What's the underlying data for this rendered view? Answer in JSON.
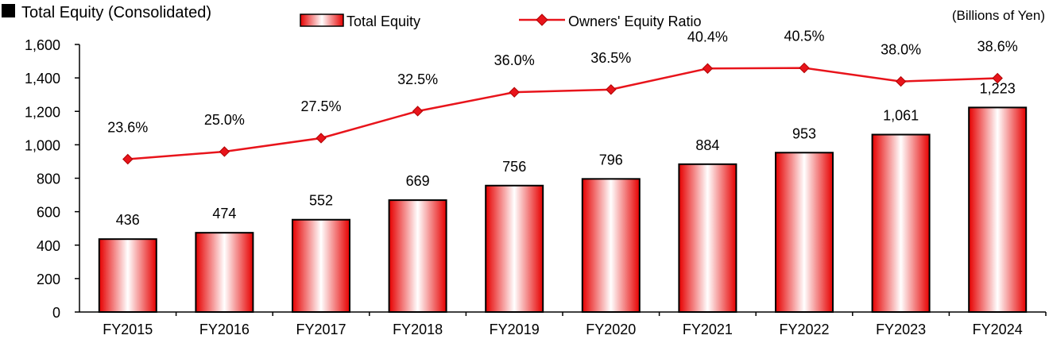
{
  "chart_data": {
    "title": "Total Equity (Consolidated)",
    "unit_note": "(Billions of Yen)",
    "type": "bar",
    "categories": [
      "FY2015",
      "FY2016",
      "FY2017",
      "FY2018",
      "FY2019",
      "FY2020",
      "FY2021",
      "FY2022",
      "FY2023",
      "FY2024"
    ],
    "series": [
      {
        "name": "Total Equity",
        "type": "bar",
        "axis": "left",
        "values": [
          436,
          474,
          552,
          669,
          756,
          796,
          884,
          953,
          1061,
          1223
        ],
        "labels": [
          "436",
          "474",
          "552",
          "669",
          "756",
          "796",
          "884",
          "953",
          "1,061",
          "1,223"
        ],
        "color": "#e00000"
      },
      {
        "name": "Owners' Equity Ratio",
        "type": "line",
        "axis": "secondary",
        "values": [
          23.6,
          25.0,
          27.5,
          32.5,
          36.0,
          36.5,
          40.4,
          40.5,
          38.0,
          38.6
        ],
        "labels": [
          "23.6%",
          "25.0%",
          "27.5%",
          "32.5%",
          "36.0%",
          "36.5%",
          "40.4%",
          "40.5%",
          "38.0%",
          "38.6%"
        ],
        "color": "#e8141b"
      }
    ],
    "y_axis": {
      "ylim": [
        0,
        1600
      ],
      "ticks": [
        0,
        200,
        400,
        600,
        800,
        1000,
        1200,
        1400,
        1600
      ],
      "tick_labels": [
        "0",
        "200",
        "400",
        "600",
        "800",
        "1,000",
        "1,200",
        "1,400",
        "1,600"
      ]
    },
    "legend": {
      "placement": "top"
    },
    "grid": false
  }
}
